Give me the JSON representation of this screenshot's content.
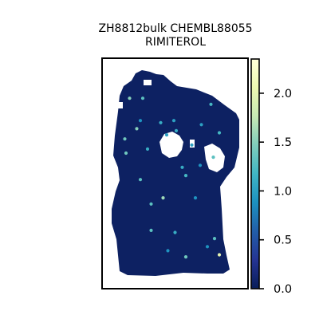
{
  "chart_data": {
    "type": "scatter",
    "title_line1": "ZH8812bulk CHEMBL88055",
    "title_line2": "RIMITEROL",
    "xlabel": "",
    "ylabel": "",
    "colorbar": {
      "colormap": "YlGnBu",
      "vmin": 0.0,
      "vmax": 2.35,
      "ticks": [
        "0.0",
        "0.5",
        "1.0",
        "1.5",
        "2.0"
      ],
      "tick_values": [
        0.0,
        0.5,
        1.0,
        1.5,
        2.0
      ]
    },
    "background_value": 0.05,
    "highlighted_spots": [
      {
        "x": 0.53,
        "y": 0.79,
        "value": 1.1
      },
      {
        "x": 0.62,
        "y": 0.91,
        "value": 1.4
      },
      {
        "x": 0.21,
        "y": 0.28,
        "value": 1.5
      },
      {
        "x": 0.26,
        "y": 0.13,
        "value": 1.3
      },
      {
        "x": 0.3,
        "y": 0.38,
        "value": 1.1
      },
      {
        "x": 0.33,
        "y": 0.65,
        "value": 1.3
      },
      {
        "x": 0.43,
        "y": 0.62,
        "value": 1.6
      },
      {
        "x": 0.7,
        "y": 0.62,
        "value": 0.9
      },
      {
        "x": 0.9,
        "y": 0.9,
        "value": 2.0
      },
      {
        "x": 0.74,
        "y": 0.46,
        "value": 0.9
      },
      {
        "x": 0.46,
        "y": 0.31,
        "value": 1.0
      },
      {
        "x": 0.12,
        "y": 0.4,
        "value": 1.4
      },
      {
        "x": 0.24,
        "y": 0.24,
        "value": 0.9
      },
      {
        "x": 0.41,
        "y": 0.25,
        "value": 1.1
      },
      {
        "x": 0.54,
        "y": 0.29,
        "value": 1.1
      },
      {
        "x": 0.67,
        "y": 0.36,
        "value": 1.0
      },
      {
        "x": 0.85,
        "y": 0.42,
        "value": 1.3
      },
      {
        "x": 0.75,
        "y": 0.26,
        "value": 1.0
      },
      {
        "x": 0.83,
        "y": 0.16,
        "value": 1.2
      },
      {
        "x": 0.24,
        "y": 0.53,
        "value": 1.3
      },
      {
        "x": 0.59,
        "y": 0.47,
        "value": 1.1
      },
      {
        "x": 0.62,
        "y": 0.51,
        "value": 1.2
      },
      {
        "x": 0.86,
        "y": 0.82,
        "value": 1.3
      },
      {
        "x": 0.15,
        "y": 0.13,
        "value": 1.5
      },
      {
        "x": 0.11,
        "y": 0.33,
        "value": 1.4
      },
      {
        "x": 0.33,
        "y": 0.78,
        "value": 1.3
      },
      {
        "x": 0.8,
        "y": 0.86,
        "value": 0.9
      },
      {
        "x": 0.47,
        "y": 0.88,
        "value": 0.9
      },
      {
        "x": 0.52,
        "y": 0.24,
        "value": 1.0
      },
      {
        "x": 0.9,
        "y": 0.3,
        "value": 1.2
      }
    ]
  }
}
